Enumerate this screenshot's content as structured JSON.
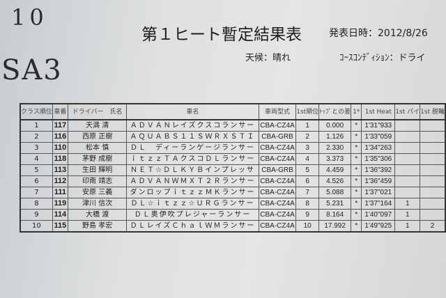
{
  "stamp": {
    "number": "10",
    "class": "SA3"
  },
  "header": {
    "title": "第１ヒート暫定結果表",
    "issued": "発表日時：2012/8/26",
    "weather": "天候：晴れ",
    "course": "ｺｰｽｺﾝﾃﾞｨｼｮﾝ：ドライ"
  },
  "table": {
    "columns": [
      "クラス順位",
      "車番",
      "ドライバー　氏名",
      "車名",
      "車両型式",
      "1st順位",
      "ﾄｯﾌﾟとの差",
      "1*",
      "1st Heat",
      "1st パイ",
      "1st 脱輪"
    ],
    "rows": [
      [
        "1",
        "117",
        "天満 清",
        "ＡＤＶＡＮレイズクスコランサー",
        "CBA-CZ4A",
        "1",
        "0.000",
        "*",
        "1'31\"933",
        "",
        ""
      ],
      [
        "2",
        "116",
        "西原 正樹",
        "ＡＱＵＡＢＳ１１ＳＷＲＸＳＴＩ",
        "CBA-GRB",
        "2",
        "1.126",
        "*",
        "1'33\"059",
        "",
        ""
      ],
      [
        "3",
        "110",
        "松本 慎",
        "ＤＬ　ディーランゲージランサー",
        "CBA-CZ4A",
        "3",
        "2.330",
        "*",
        "1'34\"263",
        "",
        ""
      ],
      [
        "4",
        "118",
        "茅野 成樹",
        "ｉｔｚｚＴＡクスコＤＬランサー",
        "CBA-CZ4A",
        "4",
        "3.373",
        "*",
        "1'35\"306",
        "",
        ""
      ],
      [
        "5",
        "113",
        "生田 輝明",
        "ＮＥＴ☆ＤＬＫＹＢインプレッサ",
        "CBA-GRB",
        "5",
        "4.459",
        "*",
        "1'36\"392",
        "",
        ""
      ],
      [
        "6",
        "112",
        "印南 靖志",
        "ＡＤＶＡＮＷＭＸＴ２Ｒランサー",
        "CBA-CZ4A",
        "6",
        "4.526",
        "*",
        "1'36\"459",
        "",
        ""
      ],
      [
        "7",
        "111",
        "安原 三義",
        "ダンロップｉｔｚｚＭＫランサー",
        "CBA-CZ4A",
        "7",
        "5.088",
        "*",
        "1'37\"021",
        "",
        ""
      ],
      [
        "8",
        "119",
        "津川 信次",
        "ＤＬ☆ｉｔｚｚ☆ＵＲＧランサー",
        "CBA-CZ4A",
        "8",
        "5.231",
        "*",
        "1'37\"164",
        "1",
        ""
      ],
      [
        "9",
        "114",
        "大橋 渡",
        "ＤＬ奥伊吹プレジャーランサー",
        "CBA-CZ4A",
        "9",
        "8.164",
        "*",
        "1'40\"097",
        "1",
        ""
      ],
      [
        "10",
        "115",
        "野島 孝宏",
        "ＤＬレイズＣｈａｌＷＭランサー",
        "CBA-CZ4A",
        "10",
        "17.992",
        "*",
        "1'49\"925",
        "1",
        "2"
      ]
    ]
  }
}
